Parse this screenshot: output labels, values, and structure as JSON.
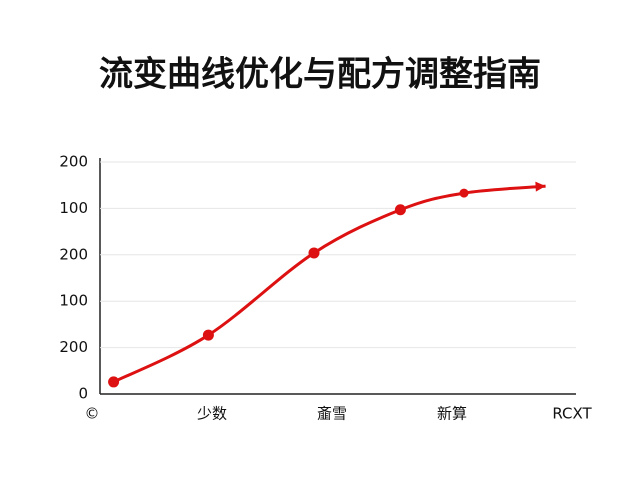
{
  "chart_data": {
    "type": "line",
    "title": "流变曲线优化与配方调整指南",
    "x": [
      0.18,
      0.97,
      1.85,
      2.57,
      3.1,
      3.78
    ],
    "series": [
      {
        "color": "#dd1111",
        "values": [
          0.26,
          1.27,
          3.04,
          3.97,
          4.33,
          4.48
        ]
      }
    ],
    "xlim": [
      0,
      4
    ],
    "xticks": [
      {
        "value": 0,
        "label": "©"
      },
      {
        "value": 1,
        "label": "少数"
      },
      {
        "value": 2,
        "label": "齑雪"
      },
      {
        "value": 3,
        "label": "新算"
      },
      {
        "value": 4,
        "label": "RCXT"
      }
    ],
    "ylim": [
      0,
      5
    ],
    "yticks": [
      0,
      {
        "value": 1,
        "label": "200"
      },
      {
        "value": 2,
        "label": "100"
      },
      {
        "value": 3,
        "label": "200"
      },
      {
        "value": 4,
        "label": "100"
      },
      {
        "value": 5,
        "label": "200"
      }
    ],
    "grid": true
  }
}
